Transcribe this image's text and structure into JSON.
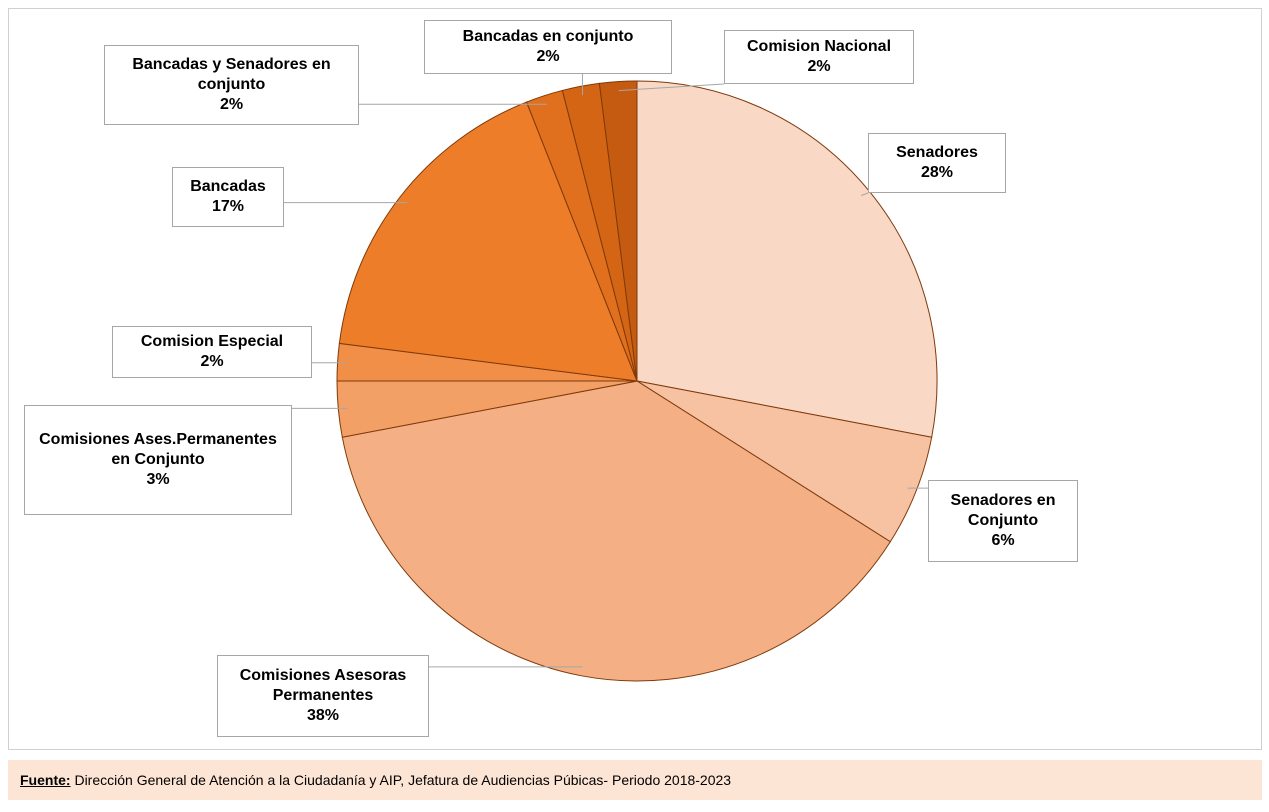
{
  "chart_data": {
    "type": "pie",
    "categories": [
      "Senadores",
      "Senadores en Conjunto",
      "Comisiones Asesoras Permanentes",
      "Comisiones Ases.Permanentes en Conjunto",
      "Comision Especial",
      "Bancadas",
      "Bancadas y Senadores en conjunto",
      "Bancadas en conjunto",
      "Comision Nacional"
    ],
    "values": [
      28,
      6,
      38,
      3,
      2,
      17,
      2,
      2,
      2
    ],
    "value_labels": [
      "28%",
      "6%",
      "38%",
      "3%",
      "2%",
      "17%",
      "2%",
      "2%",
      "2%"
    ],
    "colors": [
      "#f9d8c6",
      "#f6c2a2",
      "#f4b084",
      "#f3a067",
      "#f18f48",
      "#ee7d2a",
      "#e06f1e",
      "#d46515",
      "#c55b10"
    ]
  },
  "footer": {
    "source_label": "Fuente:",
    "source_text": "Dirección General de Atención a la Ciudadanía y AIP, Jefatura de Audiencias Púbicas- Periodo 2018-2023"
  }
}
